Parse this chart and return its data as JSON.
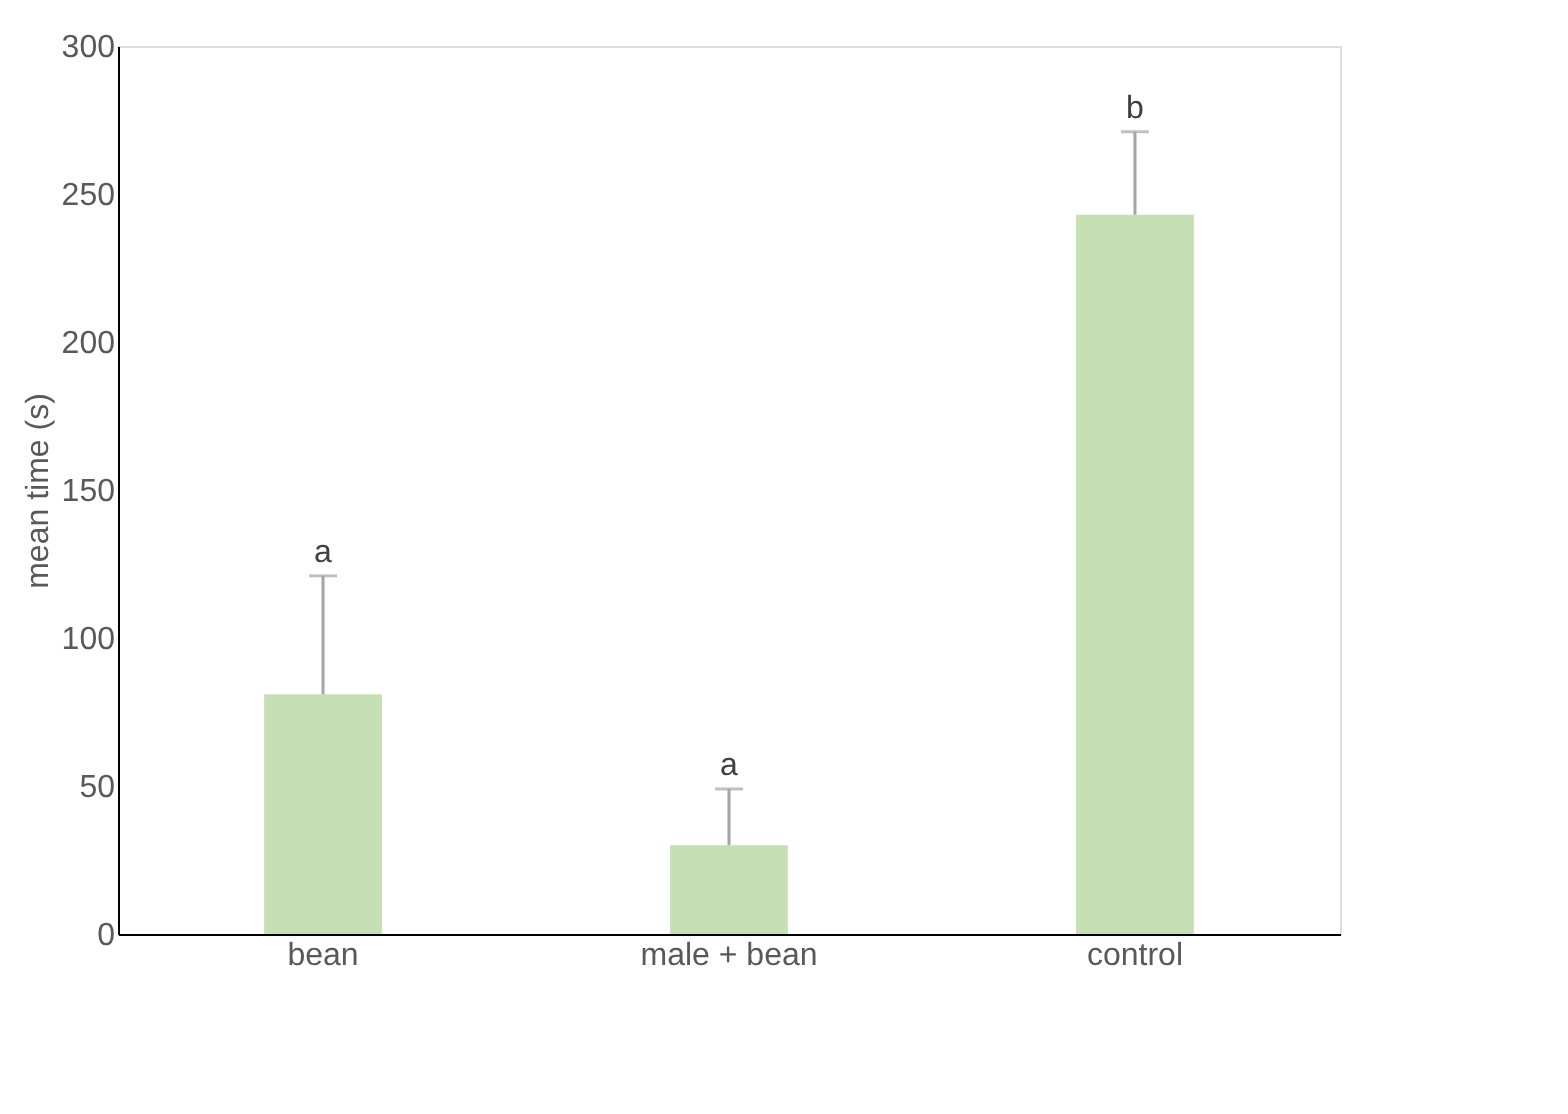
{
  "chart_data": {
    "type": "bar",
    "ylabel": "mean time (s)",
    "categories": [
      "bean",
      "male + bean",
      "control"
    ],
    "values": [
      81,
      30,
      243
    ],
    "color": "#c5e0b4",
    "errors": [
      [
        81,
        121
      ],
      [
        30,
        49
      ],
      [
        243,
        271
      ]
    ],
    "ylim": [
      0,
      300
    ],
    "yticks": [
      0,
      50,
      100,
      150,
      200,
      250,
      300
    ],
    "grid": false,
    "annotations": [
      {
        "text": "a",
        "x": "bean",
        "y": 121
      },
      {
        "text": "a",
        "x": "male + bean",
        "y": 49
      },
      {
        "text": "b",
        "x": "control",
        "y": 271
      }
    ]
  }
}
